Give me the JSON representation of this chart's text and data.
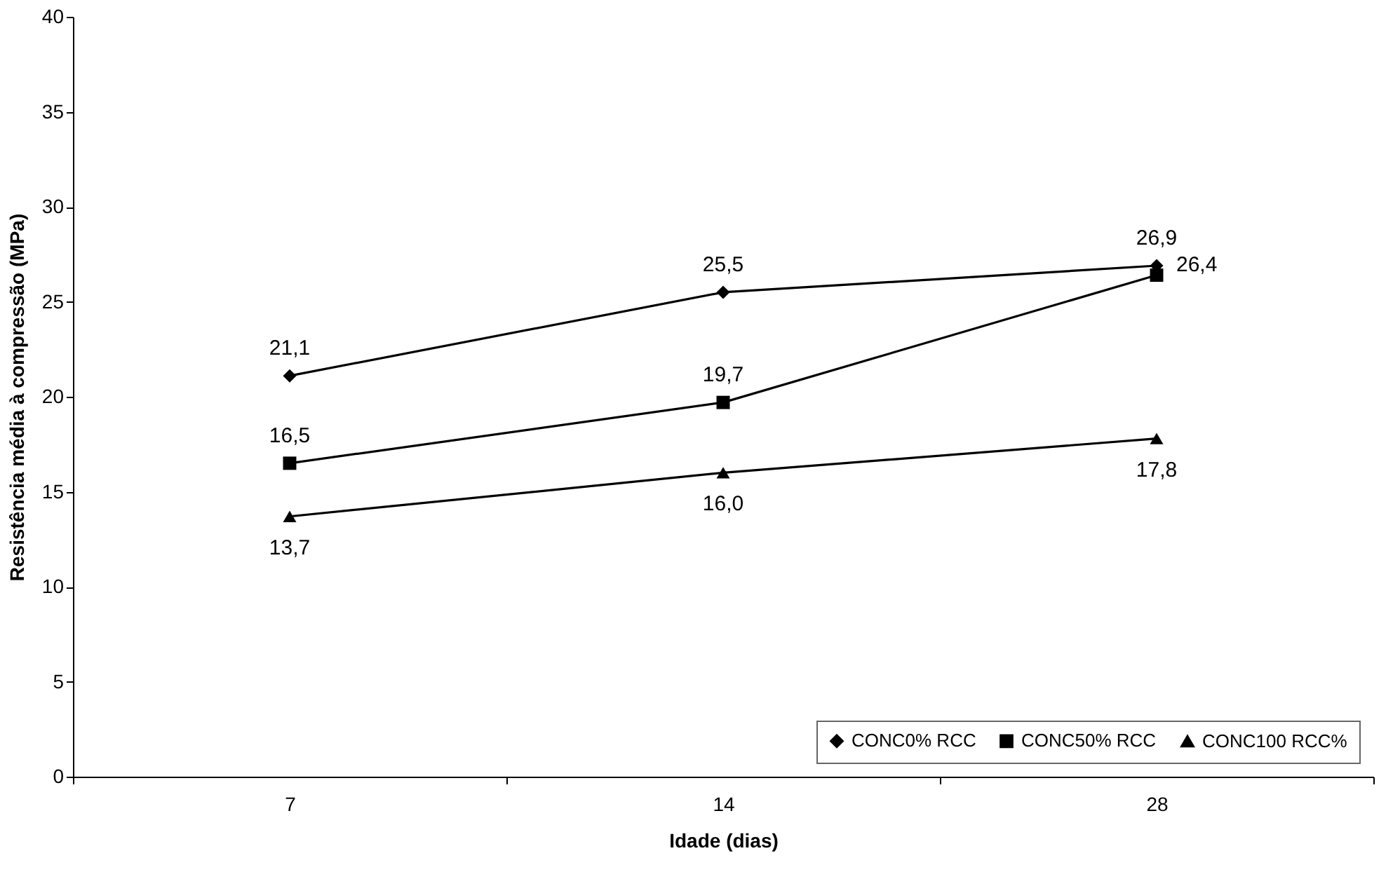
{
  "chart_data": {
    "type": "line",
    "xlabel": "Idade (dias)",
    "ylabel": "Resistência média à compressão (MPa)",
    "categories": [
      "7",
      "14",
      "28"
    ],
    "series": [
      {
        "name": "CONC0% RCC",
        "color": "#000000",
        "marker": "diamond",
        "values": [
          21.1,
          25.5,
          26.9
        ],
        "value_labels": [
          "21,1",
          "25,5",
          "26,9"
        ]
      },
      {
        "name": "CONC50% RCC",
        "color": "#000000",
        "marker": "square",
        "values": [
          16.5,
          19.7,
          26.4
        ],
        "value_labels": [
          "16,5",
          "19,7",
          "26,4"
        ]
      },
      {
        "name": "CONC100 RCC%",
        "color": "#000000",
        "marker": "triangle",
        "values": [
          13.7,
          16.0,
          17.8
        ],
        "value_labels": [
          "13,7",
          "16,0",
          "17,8"
        ]
      }
    ],
    "ylim": [
      0,
      40
    ],
    "yticks": [
      0,
      5,
      10,
      15,
      20,
      25,
      30,
      35,
      40
    ],
    "grid": false,
    "legend": "bottom right",
    "line_style": "solid"
  }
}
